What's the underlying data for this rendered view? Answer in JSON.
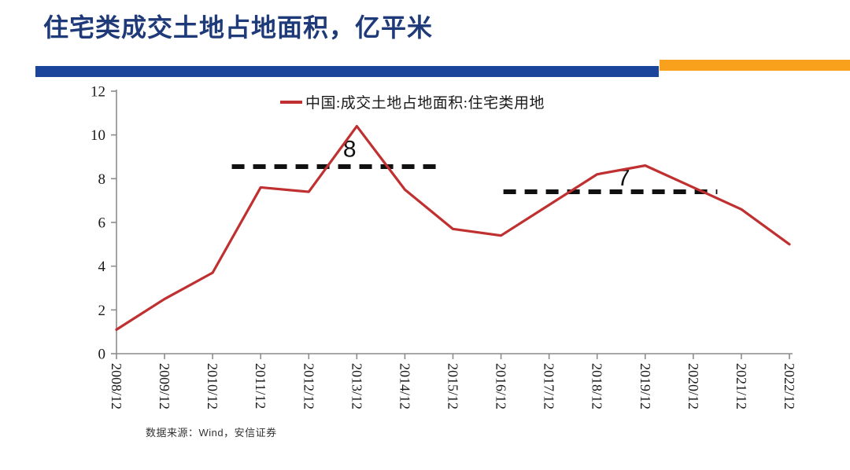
{
  "header": {
    "title": "住宅类成交土地占地面积，亿平米"
  },
  "legend": {
    "label": "中国:成交土地占地面积:住宅类用地"
  },
  "source": {
    "text": "数据来源：Wind，安信证券"
  },
  "colors": {
    "title_blue": "#1E3A78",
    "accent_blue": "#1A459B",
    "accent_orange": "#F9A11C",
    "line_red": "#C03030",
    "annotation_black": "#111111",
    "axis_gray": "#8C8C8C"
  },
  "chart_data": {
    "type": "line",
    "title": "住宅类成交土地占地面积，亿平米",
    "xlabel": "",
    "ylabel": "",
    "ylim": [
      0,
      12
    ],
    "ytick_step": 2,
    "grid": false,
    "legend_position": "top-center",
    "categories": [
      "2008/12",
      "2009/12",
      "2010/12",
      "2011/12",
      "2012/12",
      "2013/12",
      "2014/12",
      "2015/12",
      "2016/12",
      "2017/12",
      "2018/12",
      "2019/12",
      "2020/12",
      "2021/12",
      "2022/12"
    ],
    "series": [
      {
        "name": "中国:成交土地占地面积:住宅类用地",
        "values": [
          1.1,
          2.5,
          3.7,
          7.6,
          7.4,
          10.4,
          7.5,
          5.7,
          5.4,
          6.8,
          8.2,
          8.6,
          7.6,
          6.6,
          5.0
        ]
      }
    ],
    "annotations": [
      {
        "label": "8",
        "line_y": 8.55,
        "x1": 2.4,
        "x2": 6.8,
        "label_x": 4.85,
        "label_y": 9.5
      },
      {
        "label": "7",
        "line_y": 7.4,
        "x1": 8.05,
        "x2": 12.5,
        "label_x": 10.55,
        "label_y": 8.2
      }
    ]
  }
}
